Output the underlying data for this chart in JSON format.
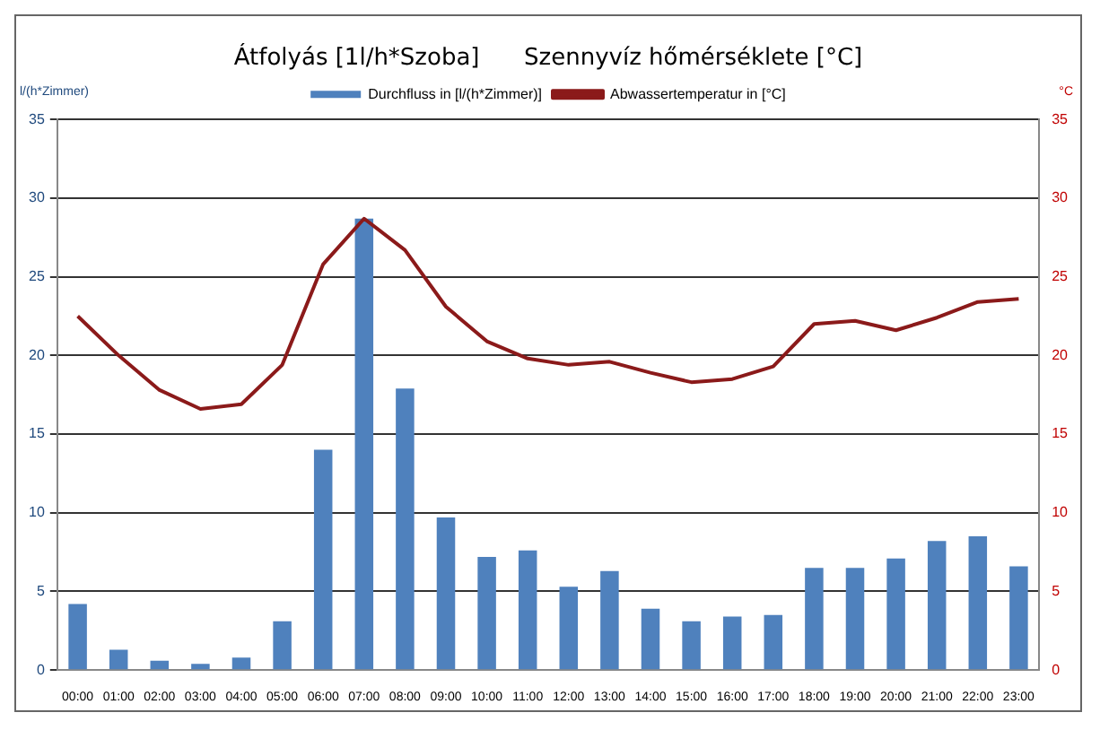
{
  "chart_data": {
    "type": "bar",
    "title": "Átfolyás [1l/h*Szoba]      Szennyvíz hőmérséklete [°C]",
    "ylabel": "l/(h*Zimmer)",
    "y2label": "°C",
    "categories": [
      "00:00",
      "01:00",
      "02:00",
      "03:00",
      "04:00",
      "05:00",
      "06:00",
      "07:00",
      "08:00",
      "09:00",
      "10:00",
      "11:00",
      "12:00",
      "13:00",
      "14:00",
      "15:00",
      "16:00",
      "17:00",
      "18:00",
      "19:00",
      "20:00",
      "21:00",
      "22:00",
      "23:00"
    ],
    "series": [
      {
        "name": "Durchfluss in [l/(h*Zimmer)]",
        "color": "#4f81bd",
        "values": [
          4.2,
          1.3,
          0.6,
          0.4,
          0.8,
          3.1,
          14,
          28.7,
          17.9,
          9.7,
          7.2,
          7.6,
          5.3,
          6.3,
          3.9,
          3.1,
          3.4,
          3.5,
          6.5,
          6.5,
          7.1,
          8.2,
          8.5,
          6.6
        ]
      },
      {
        "name": "Abwassertemperatur in [°C]",
        "type": "line",
        "axis": "y2",
        "color": "#8b1a1a",
        "marker": "none",
        "values": [
          22.5,
          20,
          17.8,
          16.6,
          16.9,
          19.4,
          25.8,
          28.7,
          26.7,
          23.1,
          20.9,
          19.8,
          19.4,
          19.6,
          18.9,
          18.3,
          18.5,
          19.3,
          22,
          22.2,
          21.6,
          22.4,
          23.4,
          23.6
        ]
      }
    ],
    "ylim": [
      0,
      35
    ],
    "yticks": [
      0,
      5,
      10,
      15,
      20,
      25,
      30,
      35
    ],
    "y2lim": [
      0,
      35
    ],
    "y2ticks": [
      0,
      5,
      10,
      15,
      20,
      25,
      30,
      35
    ],
    "grid": "y",
    "legend": "top"
  }
}
